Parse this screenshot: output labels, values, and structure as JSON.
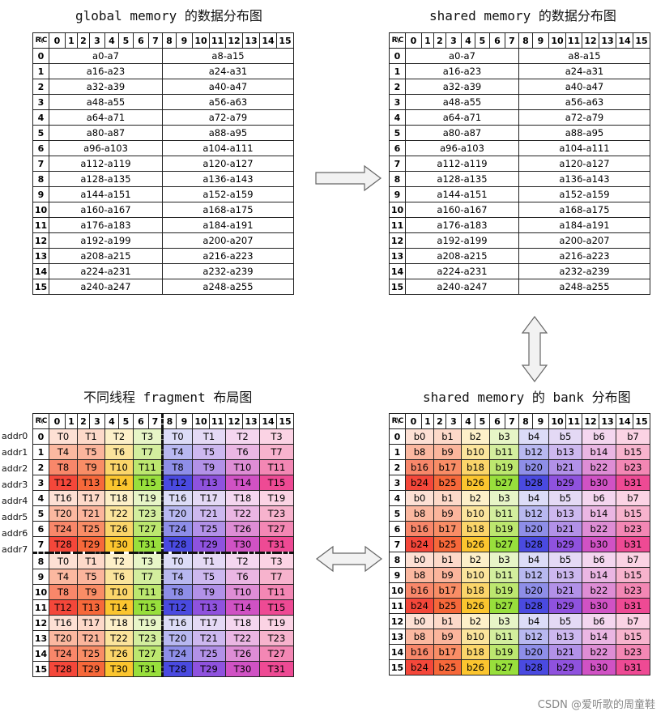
{
  "titles": {
    "global": "global memory 的数据分布图",
    "shared": "shared memory 的数据分布图",
    "fragment": "不同线程 fragment 布局图",
    "bank": "shared memory 的 bank 分布图"
  },
  "header": {
    "corner": "R\\C",
    "cols": [
      "0",
      "1",
      "2",
      "3",
      "4",
      "5",
      "6",
      "7",
      "8",
      "9",
      "10",
      "11",
      "12",
      "13",
      "14",
      "15"
    ]
  },
  "rows": [
    "0",
    "1",
    "2",
    "3",
    "4",
    "5",
    "6",
    "7",
    "8",
    "9",
    "10",
    "11",
    "12",
    "13",
    "14",
    "15"
  ],
  "data_cells": [
    [
      "a0-a7",
      "a8-a15"
    ],
    [
      "a16-a23",
      "a24-a31"
    ],
    [
      "a32-a39",
      "a40-a47"
    ],
    [
      "a48-a55",
      "a56-a63"
    ],
    [
      "a64-a71",
      "a72-a79"
    ],
    [
      "a80-a87",
      "a88-a95"
    ],
    [
      "a96-a103",
      "a104-a111"
    ],
    [
      "a112-a119",
      "a120-a127"
    ],
    [
      "a128-a135",
      "a136-a143"
    ],
    [
      "a144-a151",
      "a152-a159"
    ],
    [
      "a160-a167",
      "a168-a175"
    ],
    [
      "a176-a183",
      "a184-a191"
    ],
    [
      "a192-a199",
      "a200-a207"
    ],
    [
      "a208-a215",
      "a216-a223"
    ],
    [
      "a224-a231",
      "a232-a239"
    ],
    [
      "a240-a247",
      "a248-a255"
    ]
  ],
  "addr_labels": [
    "addr0",
    "addr1",
    "addr2",
    "addr3",
    "addr4",
    "addr5",
    "addr6",
    "addr7"
  ],
  "fragment_rows": [
    [
      "T0",
      "T1",
      "T2",
      "T3",
      "T0",
      "T1",
      "T2",
      "T3"
    ],
    [
      "T4",
      "T5",
      "T6",
      "T7",
      "T4",
      "T5",
      "T6",
      "T7"
    ],
    [
      "T8",
      "T9",
      "T10",
      "T11",
      "T8",
      "T9",
      "T10",
      "T11"
    ],
    [
      "T12",
      "T13",
      "T14",
      "T15",
      "T12",
      "T13",
      "T14",
      "T15"
    ],
    [
      "T16",
      "T17",
      "T18",
      "T19",
      "T16",
      "T17",
      "T18",
      "T19"
    ],
    [
      "T20",
      "T21",
      "T22",
      "T23",
      "T20",
      "T21",
      "T22",
      "T23"
    ],
    [
      "T24",
      "T25",
      "T26",
      "T27",
      "T24",
      "T25",
      "T26",
      "T27"
    ],
    [
      "T28",
      "T29",
      "T30",
      "T31",
      "T28",
      "T29",
      "T30",
      "T31"
    ],
    [
      "T0",
      "T1",
      "T2",
      "T3",
      "T0",
      "T1",
      "T2",
      "T3"
    ],
    [
      "T4",
      "T5",
      "T6",
      "T7",
      "T4",
      "T5",
      "T6",
      "T7"
    ],
    [
      "T8",
      "T9",
      "T10",
      "T11",
      "T8",
      "T9",
      "T10",
      "T11"
    ],
    [
      "T12",
      "T13",
      "T14",
      "T15",
      "T12",
      "T13",
      "T14",
      "T15"
    ],
    [
      "T16",
      "T17",
      "T18",
      "T19",
      "T16",
      "T17",
      "T18",
      "T19"
    ],
    [
      "T20",
      "T21",
      "T22",
      "T23",
      "T20",
      "T21",
      "T22",
      "T23"
    ],
    [
      "T24",
      "T25",
      "T26",
      "T27",
      "T24",
      "T25",
      "T26",
      "T27"
    ],
    [
      "T28",
      "T29",
      "T30",
      "T31",
      "T28",
      "T29",
      "T30",
      "T31"
    ]
  ],
  "fragment_colors": [
    [
      "#fde0d4",
      "#fdd9c9",
      "#fdf0c9",
      "#e7f5c7",
      "#dcdcf7",
      "#e4d9f5",
      "#f4d6ef",
      "#fbd3e4"
    ],
    [
      "#fbb8a0",
      "#fbb59c",
      "#fbe49c",
      "#d3ee9e",
      "#b8b8f0",
      "#cdb8ef",
      "#eab6e3",
      "#f7b3cd"
    ],
    [
      "#f8876a",
      "#f98d66",
      "#fbd56a",
      "#bce76f",
      "#8e8ee8",
      "#b291e8",
      "#de8dd5",
      "#f387b4"
    ],
    [
      "#f4473a",
      "#f6683a",
      "#fbc52f",
      "#98df3c",
      "#4a4ae0",
      "#8f52de",
      "#d052c4",
      "#ee4a94"
    ],
    [
      "#fde0d4",
      "#fdd9c9",
      "#fdf0c9",
      "#e7f5c7",
      "#dcdcf7",
      "#e4d9f5",
      "#f4d6ef",
      "#fbd3e4"
    ],
    [
      "#fbb8a0",
      "#fbb59c",
      "#fbe49c",
      "#d3ee9e",
      "#b8b8f0",
      "#cdb8ef",
      "#eab6e3",
      "#f7b3cd"
    ],
    [
      "#f8876a",
      "#f98d66",
      "#fbd56a",
      "#bce76f",
      "#8e8ee8",
      "#b291e8",
      "#de8dd5",
      "#f387b4"
    ],
    [
      "#f4473a",
      "#f6683a",
      "#fbc52f",
      "#98df3c",
      "#4a4ae0",
      "#8f52de",
      "#d052c4",
      "#ee4a94"
    ]
  ],
  "bank_rows": [
    [
      "b0",
      "b1",
      "b2",
      "b3",
      "b4",
      "b5",
      "b6",
      "b7"
    ],
    [
      "b8",
      "b9",
      "b10",
      "b11",
      "b12",
      "b13",
      "b14",
      "b15"
    ],
    [
      "b16",
      "b17",
      "b18",
      "b19",
      "b20",
      "b21",
      "b22",
      "b23"
    ],
    [
      "b24",
      "b25",
      "b26",
      "b27",
      "b28",
      "b29",
      "b30",
      "b31"
    ]
  ],
  "watermark": "CSDN @爱听歌的周童鞋"
}
